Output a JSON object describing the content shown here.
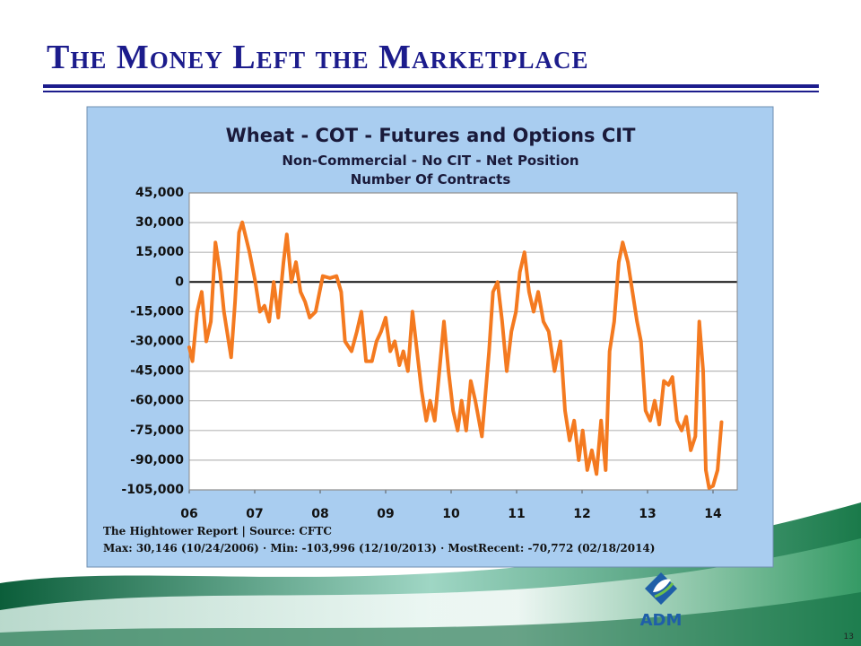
{
  "slide": {
    "title": "The Money Left the Marketplace",
    "page_number": "13",
    "logo": "ADM"
  },
  "chart_data": {
    "type": "line",
    "title": "Wheat - COT - Futures and Options CIT",
    "subtitle": "Non-Commercial - No CIT - Net Position",
    "subtitle2": "Number Of Contracts",
    "source": "The Hightower Report | Source: CFTC",
    "note": "Max: 30,146 (10/24/2006)  ·  Min: -103,996 (12/10/2013)  ·  MostRecent: -70,772 (02/18/2014)",
    "color": "#f47a20",
    "grid": true,
    "xlim": [
      2006,
      2014.37
    ],
    "xticks": [
      {
        "value": 2006,
        "label": "06"
      },
      {
        "value": 2007,
        "label": "07"
      },
      {
        "value": 2008,
        "label": "08"
      },
      {
        "value": 2009,
        "label": "09"
      },
      {
        "value": 2010,
        "label": "10"
      },
      {
        "value": 2011,
        "label": "11"
      },
      {
        "value": 2012,
        "label": "12"
      },
      {
        "value": 2013,
        "label": "13"
      },
      {
        "value": 2014,
        "label": "14"
      }
    ],
    "ylim": [
      -105000,
      45000
    ],
    "yticks": [
      {
        "value": 45000,
        "label": "45,000"
      },
      {
        "value": 30000,
        "label": "30,000"
      },
      {
        "value": 15000,
        "label": "15,000"
      },
      0,
      {
        "value": -15000,
        "label": "-15,000"
      },
      {
        "value": -30000,
        "label": "-30,000"
      },
      {
        "value": -45000,
        "label": "-45,000"
      },
      {
        "value": -60000,
        "label": "-60,000"
      },
      {
        "value": -75000,
        "label": "-75,000"
      },
      {
        "value": -90000,
        "label": "-90,000"
      },
      {
        "value": -105000,
        "label": "-105,000"
      }
    ],
    "x": [
      2006.0,
      2006.05,
      2006.12,
      2006.19,
      2006.26,
      2006.33,
      2006.4,
      2006.47,
      2006.53,
      2006.64,
      2006.7,
      2006.76,
      2006.81,
      2006.92,
      2007.01,
      2007.08,
      2007.15,
      2007.22,
      2007.29,
      2007.36,
      2007.44,
      2007.49,
      2007.56,
      2007.63,
      2007.7,
      2007.77,
      2007.84,
      2007.93,
      2008.04,
      2008.15,
      2008.25,
      2008.32,
      2008.38,
      2008.48,
      2008.56,
      2008.63,
      2008.7,
      2008.79,
      2008.86,
      2008.93,
      2009.0,
      2009.07,
      2009.14,
      2009.21,
      2009.27,
      2009.34,
      2009.41,
      2009.48,
      2009.55,
      2009.62,
      2009.68,
      2009.75,
      2009.82,
      2009.89,
      2009.96,
      2010.03,
      2010.1,
      2010.16,
      2010.23,
      2010.3,
      2010.37,
      2010.47,
      2010.58,
      2010.64,
      2010.71,
      2010.78,
      2010.85,
      2010.92,
      2010.99,
      2011.05,
      2011.12,
      2011.19,
      2011.26,
      2011.33,
      2011.41,
      2011.49,
      2011.58,
      2011.67,
      2011.74,
      2011.81,
      2011.88,
      2011.95,
      2012.01,
      2012.08,
      2012.15,
      2012.22,
      2012.29,
      2012.36,
      2012.42,
      2012.49,
      2012.56,
      2012.62,
      2012.7,
      2012.77,
      2012.84,
      2012.9,
      2012.97,
      2013.04,
      2013.11,
      2013.18,
      2013.25,
      2013.32,
      2013.38,
      2013.45,
      2013.52,
      2013.59,
      2013.66,
      2013.73,
      2013.79,
      2013.85,
      2013.89,
      2013.94,
      2014.0,
      2014.07,
      2014.13
    ],
    "values": [
      -33000,
      -40000,
      -15000,
      -5000,
      -30000,
      -20000,
      20000,
      5000,
      -15000,
      -38000,
      -10000,
      25000,
      30146,
      15000,
      0,
      -15000,
      -12000,
      -20000,
      0,
      -18000,
      10000,
      24000,
      0,
      10000,
      -5000,
      -10000,
      -18000,
      -15000,
      3000,
      2000,
      3000,
      -5000,
      -30000,
      -35000,
      -25000,
      -15000,
      -40000,
      -40000,
      -30000,
      -25000,
      -18000,
      -35000,
      -30000,
      -42000,
      -35000,
      -45000,
      -15000,
      -35000,
      -55000,
      -70000,
      -60000,
      -70000,
      -45000,
      -20000,
      -45000,
      -65000,
      -75000,
      -60000,
      -75000,
      -50000,
      -60000,
      -78000,
      -35000,
      -5000,
      0,
      -20000,
      -45000,
      -25000,
      -15000,
      5000,
      15000,
      -5000,
      -15000,
      -5000,
      -20000,
      -25000,
      -45000,
      -30000,
      -65000,
      -80000,
      -70000,
      -90000,
      -75000,
      -95000,
      -85000,
      -97000,
      -70000,
      -95000,
      -35000,
      -20000,
      10000,
      20000,
      10000,
      -5000,
      -20000,
      -30000,
      -65000,
      -70000,
      -60000,
      -72000,
      -50000,
      -52000,
      -48000,
      -70000,
      -75000,
      -68000,
      -85000,
      -78000,
      -20000,
      -45000,
      -95000,
      -103996,
      -103000,
      -95000,
      -70772
    ]
  }
}
